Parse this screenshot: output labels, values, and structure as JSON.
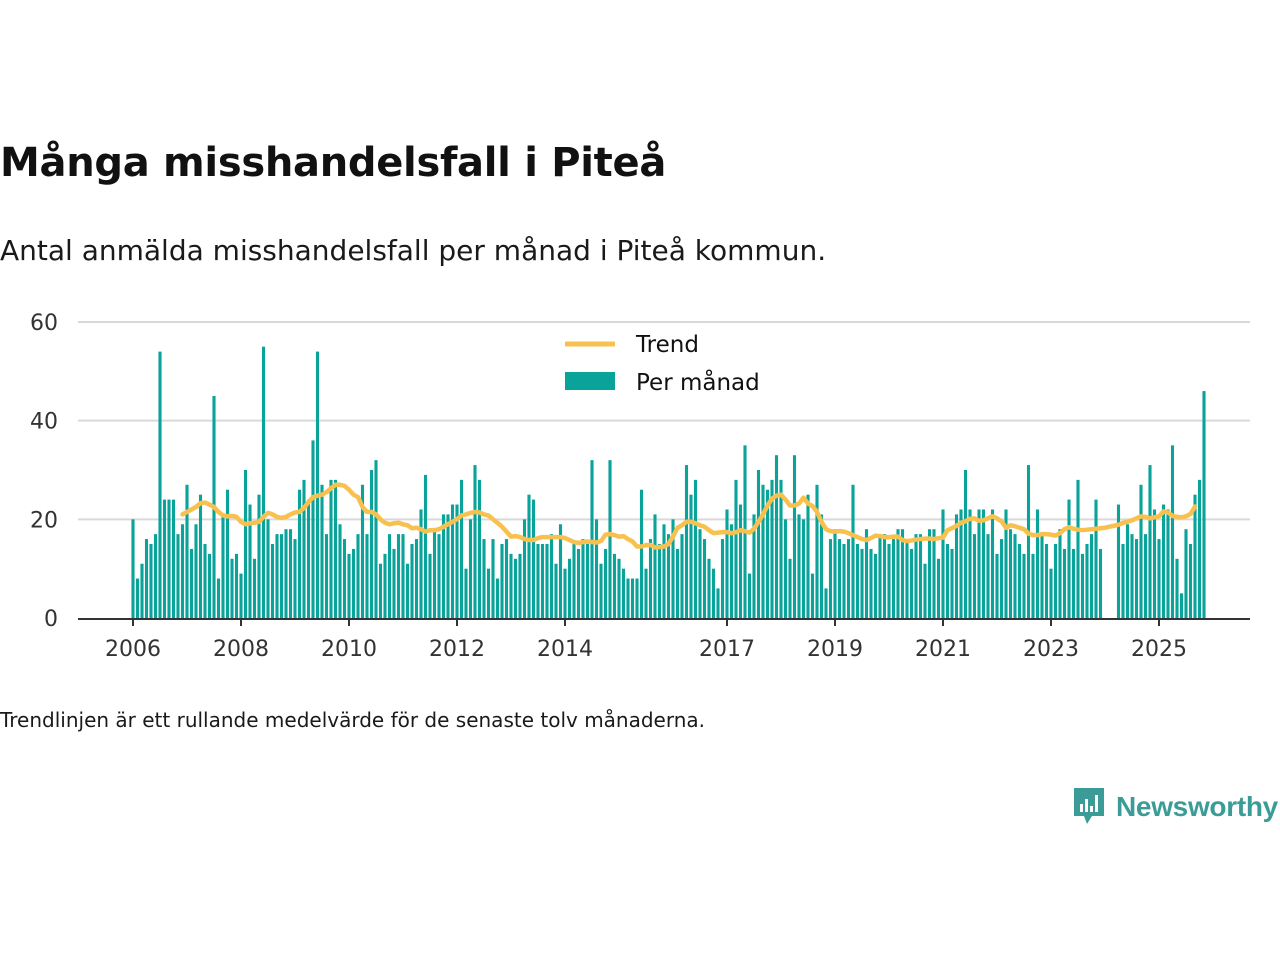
{
  "title": "Många misshandelsfall i Piteå",
  "subtitle": "Antal anmälda misshandelsfall per månad i Piteå kommun.",
  "footnote": "Trendlinjen är ett rullande medelvärde för de senaste tolv månaderna.",
  "brand": {
    "name": "Newsworthy",
    "icon": "newsworthy-logo-icon",
    "color": "#3b9c97"
  },
  "chart_data": {
    "type": "bar",
    "x_start": "2006-01",
    "x_end": "2025-08",
    "ylim": [
      0,
      60
    ],
    "yticks": [
      0,
      20,
      40,
      60
    ],
    "xticks": [
      "2006",
      "2008",
      "2010",
      "2012",
      "2014",
      "2017",
      "2019",
      "2021",
      "2023",
      "2025"
    ],
    "grid": true,
    "legend": {
      "placement": "top-center",
      "entries": [
        "Trend",
        "Per månad"
      ]
    },
    "colors": {
      "bars": "#0aa39a",
      "trend": "#f8c14f",
      "grid": "#d9d9d9",
      "axis": "#333333"
    },
    "series": [
      {
        "name": "Per månad",
        "type": "bar",
        "values": [
          20,
          8,
          11,
          16,
          15,
          17,
          54,
          24,
          24,
          24,
          17,
          19,
          27,
          14,
          19,
          25,
          15,
          13,
          45,
          8,
          21,
          26,
          12,
          13,
          9,
          30,
          23,
          12,
          25,
          55,
          20,
          15,
          17,
          17,
          18,
          18,
          16,
          26,
          28,
          24,
          36,
          54,
          27,
          17,
          28,
          28,
          19,
          16,
          13,
          14,
          17,
          27,
          17,
          30,
          32,
          11,
          13,
          17,
          14,
          17,
          17,
          11,
          15,
          16,
          22,
          29,
          13,
          18,
          17,
          21,
          21,
          23,
          23,
          28,
          10,
          20,
          31,
          28,
          16,
          10,
          16,
          8,
          15,
          16,
          13,
          12,
          13,
          20,
          25,
          24,
          15,
          15,
          15,
          17,
          11,
          19,
          10,
          12,
          15,
          14,
          16,
          15,
          32,
          20,
          11,
          14,
          32,
          13,
          12,
          10,
          8,
          8,
          8,
          26,
          10,
          16,
          21,
          15,
          19,
          17,
          20,
          14,
          17,
          31,
          25,
          28,
          18,
          16,
          12,
          10,
          6,
          16,
          22,
          19,
          28,
          23,
          35,
          9,
          21,
          30,
          27,
          26,
          28,
          33,
          28,
          20,
          12,
          33,
          21,
          20,
          25,
          9,
          27,
          21,
          6,
          16,
          18,
          16,
          15,
          16,
          27,
          15,
          14,
          18,
          14,
          13,
          17,
          17,
          15,
          16,
          18,
          18,
          16,
          14,
          17,
          17,
          11,
          18,
          18,
          12,
          22,
          15,
          14,
          21,
          22,
          30,
          22,
          17,
          22,
          22,
          17,
          22,
          13,
          16,
          22,
          18,
          17,
          15,
          13,
          31,
          13,
          22,
          17,
          15,
          10,
          15,
          18,
          14,
          24,
          14,
          28,
          13,
          15,
          17,
          24,
          14,
          0,
          0,
          0,
          23,
          15,
          19,
          17,
          16,
          27,
          17,
          31,
          22,
          16,
          23,
          22,
          35,
          12,
          5,
          18,
          15,
          25,
          28,
          46
        ]
      },
      {
        "name": "Trend",
        "type": "line",
        "values": [
          null,
          null,
          null,
          null,
          null,
          null,
          null,
          null,
          null,
          null,
          null,
          21,
          21.5,
          22,
          22.5,
          23.3,
          23.4,
          23,
          22.5,
          21.5,
          20.8,
          20.6,
          20.7,
          20.5,
          19.5,
          19,
          19.2,
          19.3,
          19.5,
          20.5,
          21.3,
          21,
          20.5,
          20.3,
          20.5,
          21,
          21.4,
          21.5,
          22.3,
          23.5,
          24.5,
          24.8,
          25,
          25.5,
          26.3,
          27,
          27,
          26.8,
          26,
          25,
          24.5,
          22.5,
          21.5,
          21.5,
          21,
          20,
          19.3,
          19,
          19.2,
          19.3,
          19,
          18.8,
          18.2,
          18.3,
          18,
          17.5,
          17.8,
          17.8,
          18,
          18.5,
          19,
          19.5,
          20,
          20.8,
          21,
          21.3,
          21.5,
          21.4,
          21,
          20.8,
          20,
          19.3,
          18.5,
          17.5,
          16.5,
          16.6,
          16.4,
          16,
          15.8,
          15.8,
          16.2,
          16.4,
          16.4,
          16.4,
          16.4,
          16.4,
          16.2,
          15.8,
          15.4,
          15.2,
          15.4,
          15.5,
          15.4,
          15.3,
          15.6,
          16.9,
          17,
          16.8,
          16.5,
          16.6,
          16,
          15.5,
          14.5,
          14.5,
          14.8,
          14.8,
          14.3,
          14.4,
          14.5,
          15,
          16.5,
          18.3,
          18.8,
          19.5,
          19.5,
          19.2,
          18.8,
          18.5,
          17.8,
          17.2,
          17.3,
          17.4,
          17.4,
          17.2,
          17.4,
          17.8,
          17.6,
          17.3,
          18.1,
          19.5,
          21,
          22.8,
          24.2,
          24.8,
          25,
          24,
          22.8,
          22.8,
          23.2,
          24.4,
          23.2,
          22.7,
          21.5,
          19.5,
          18,
          17.6,
          17.5,
          17.6,
          17.5,
          17.2,
          16.8,
          16.4,
          16,
          15.8,
          16.2,
          16.7,
          16.6,
          16.4,
          16.4,
          16.5,
          16.5,
          15.8,
          15.6,
          15.7,
          15.9,
          16,
          16.1,
          16.1,
          16,
          16.2,
          16.3,
          17.8,
          18.2,
          18.7,
          19.3,
          19.6,
          20.1,
          20.2,
          19.7,
          19.8,
          20.2,
          20.6,
          20.2,
          19.6,
          18.3,
          18.8,
          18.6,
          18.3,
          18,
          17.1,
          16.8,
          16.8,
          17,
          17,
          16.9,
          16.7,
          17.2,
          18,
          18.4,
          18.1,
          17.9,
          17.8,
          17.9,
          18,
          18.1,
          18.2,
          18.3,
          18.5,
          18.7,
          18.9,
          19.3,
          19.5,
          19.8,
          20.2,
          20.6,
          20.5,
          20.2,
          20.4,
          20.6,
          21.6,
          21.4,
          20.7,
          20.5,
          20.4,
          20.6,
          21.1,
          22.6
        ]
      }
    ]
  }
}
